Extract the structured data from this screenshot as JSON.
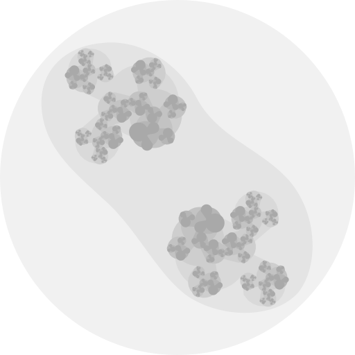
{
  "diagram": {
    "kind": "nested-blob-tree",
    "labels": [],
    "colors": {
      "background": "#ffffff",
      "level0": "#f1f1f1",
      "level1": "#e4e4e4",
      "level2": "#d9d9d9",
      "level3": "#cecece",
      "level4": "#c3c3c3",
      "level5": "#b6b6b6",
      "level6": "#a9a9a9"
    },
    "levels": 7,
    "branching_top": 2,
    "branching_lower": 3
  }
}
